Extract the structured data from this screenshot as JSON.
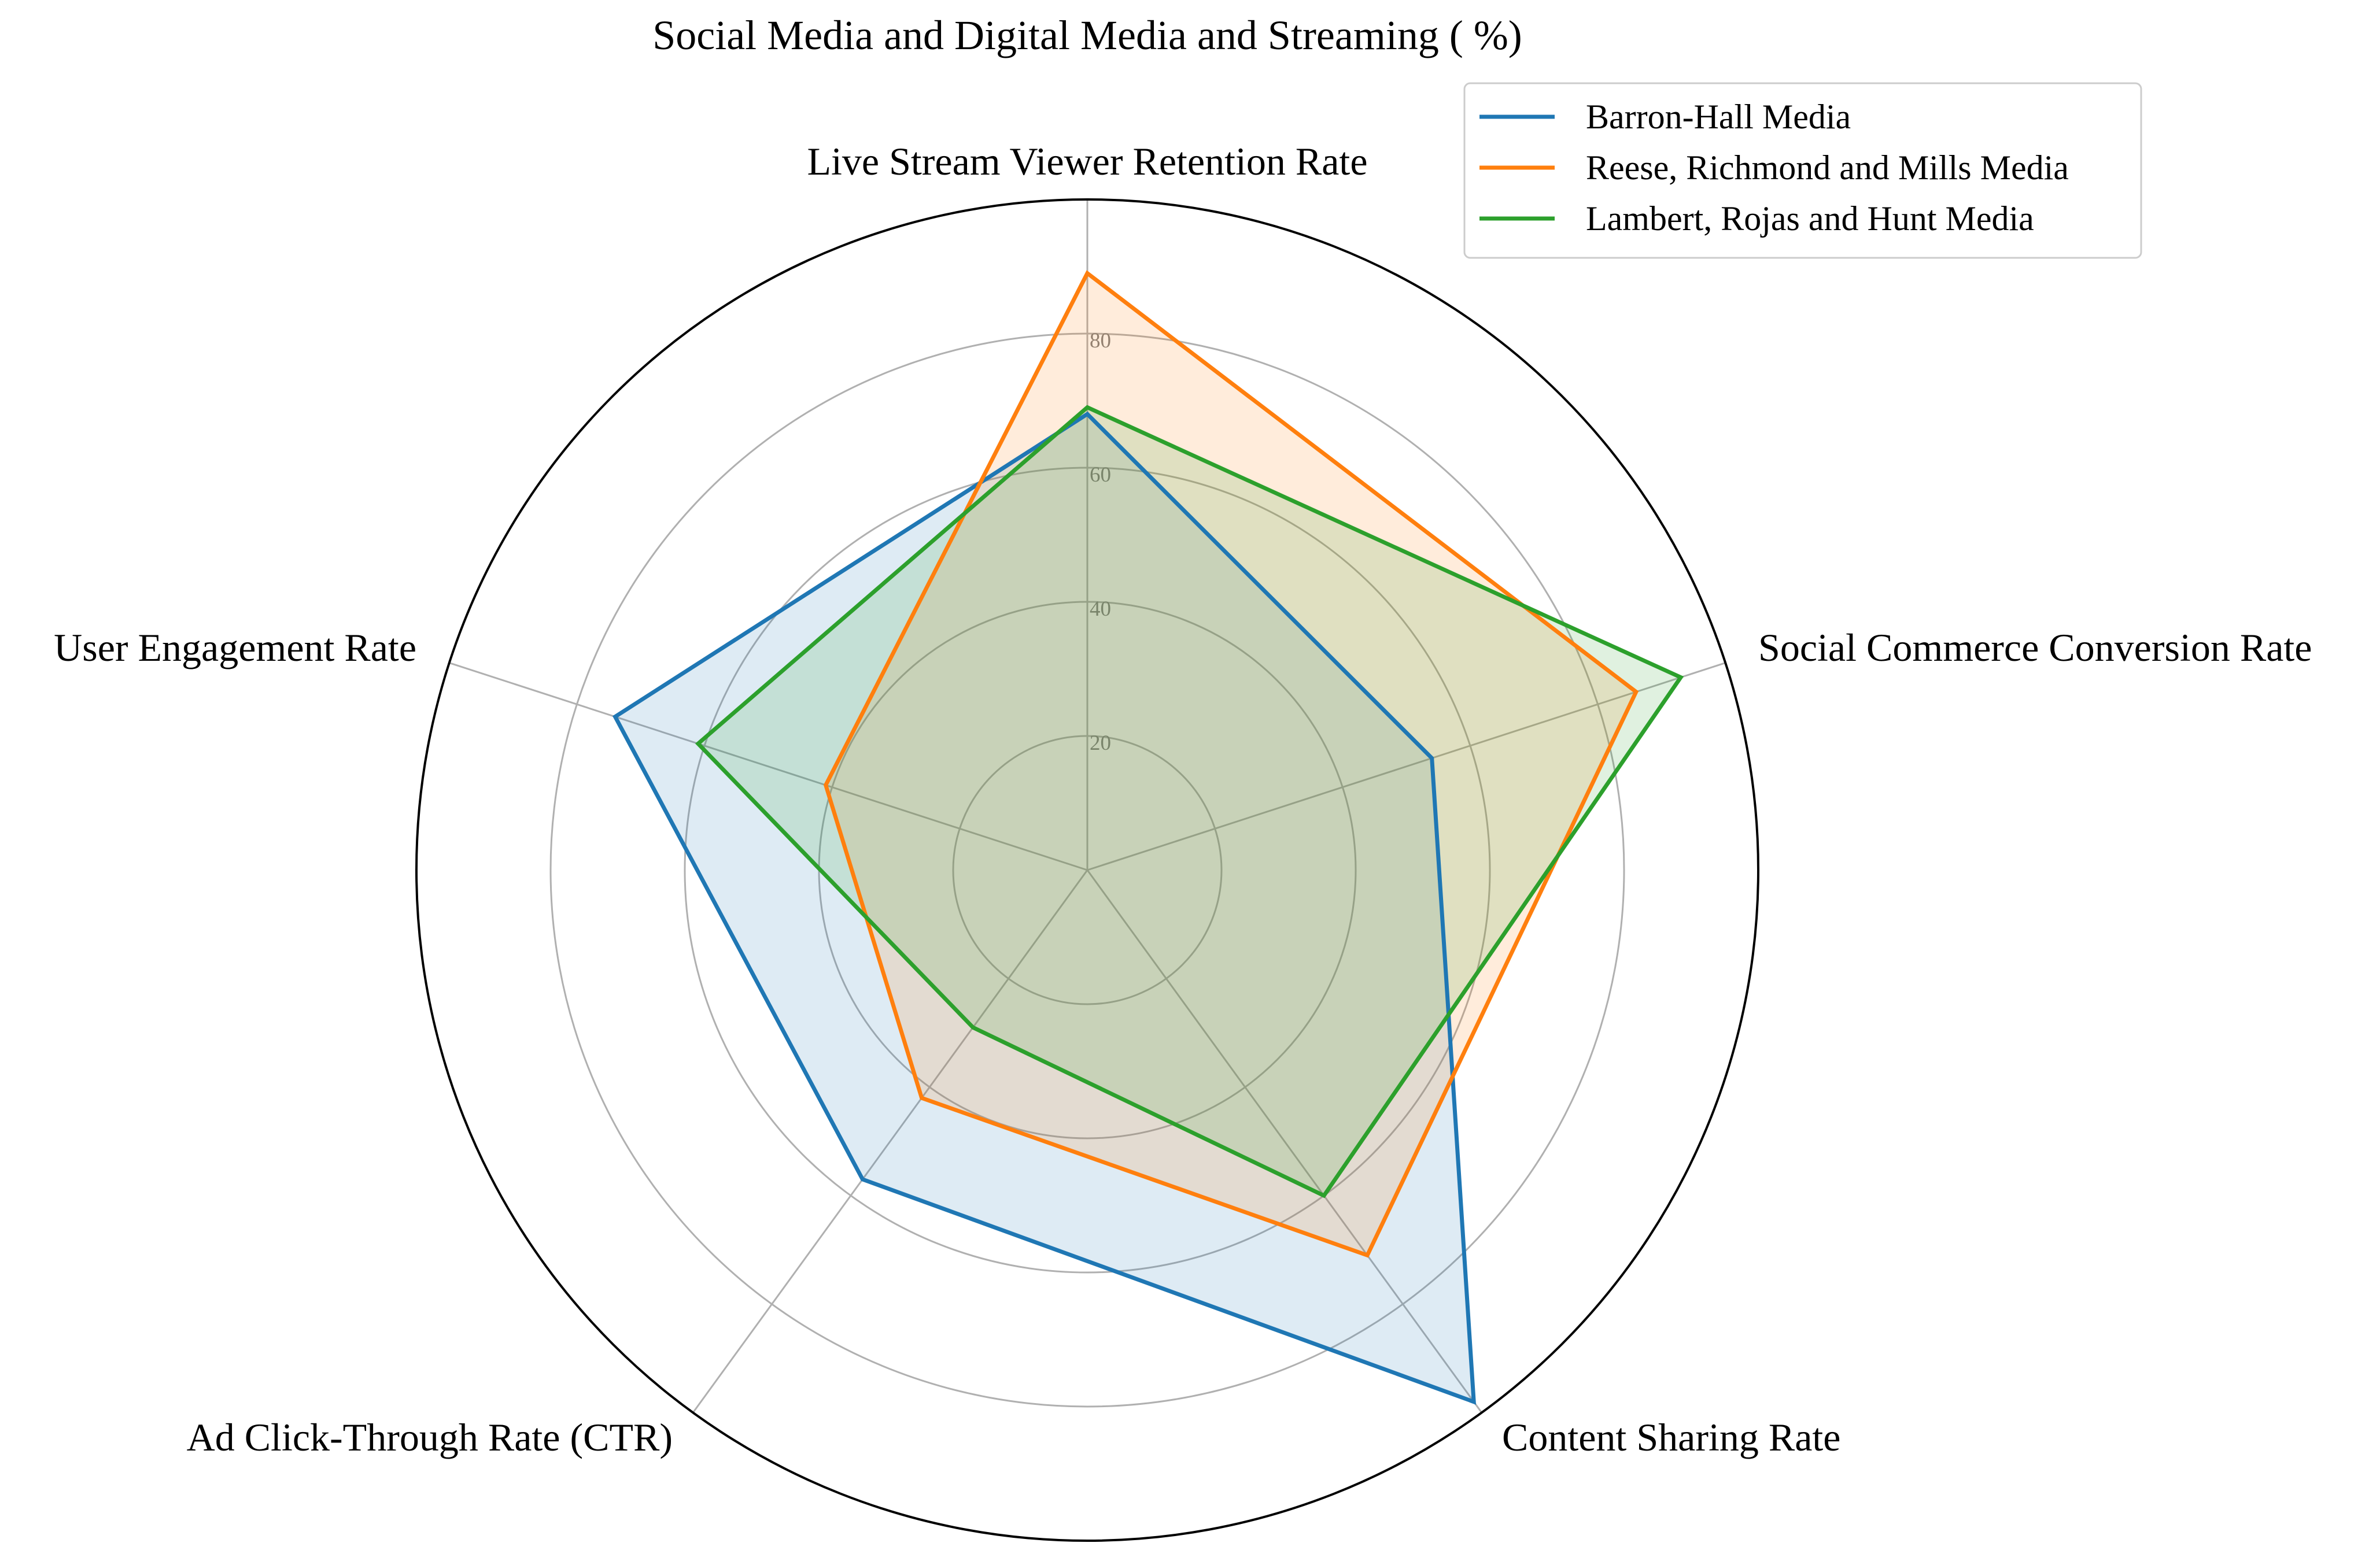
{
  "chart_data": {
    "type": "radar",
    "title": "Social Media and Digital Media and Streaming ( %)",
    "categories": [
      "Live Stream Viewer Retention Rate",
      "Social Commerce Conversion Rate",
      "Content Sharing Rate",
      "Ad Click-Through Rate (CTR)",
      "User Engagement Rate"
    ],
    "rlim": [
      0,
      100
    ],
    "r_ticks": [
      20,
      40,
      60,
      80
    ],
    "r_tick_labels": [
      "20",
      "40",
      "60",
      "80"
    ],
    "grid": true,
    "legend_position": "top-right",
    "series": [
      {
        "name": "Barron-Hall Media",
        "color": "#1f77b4",
        "values": [
          68,
          54,
          98,
          57,
          74
        ]
      },
      {
        "name": "Reese, Richmond and Mills Media",
        "color": "#ff7f0e",
        "values": [
          89,
          86,
          71,
          42,
          41
        ]
      },
      {
        "name": "Lambert, Rojas and Hunt Media",
        "color": "#2ca02c",
        "values": [
          69,
          93,
          60,
          29,
          61
        ]
      }
    ]
  }
}
